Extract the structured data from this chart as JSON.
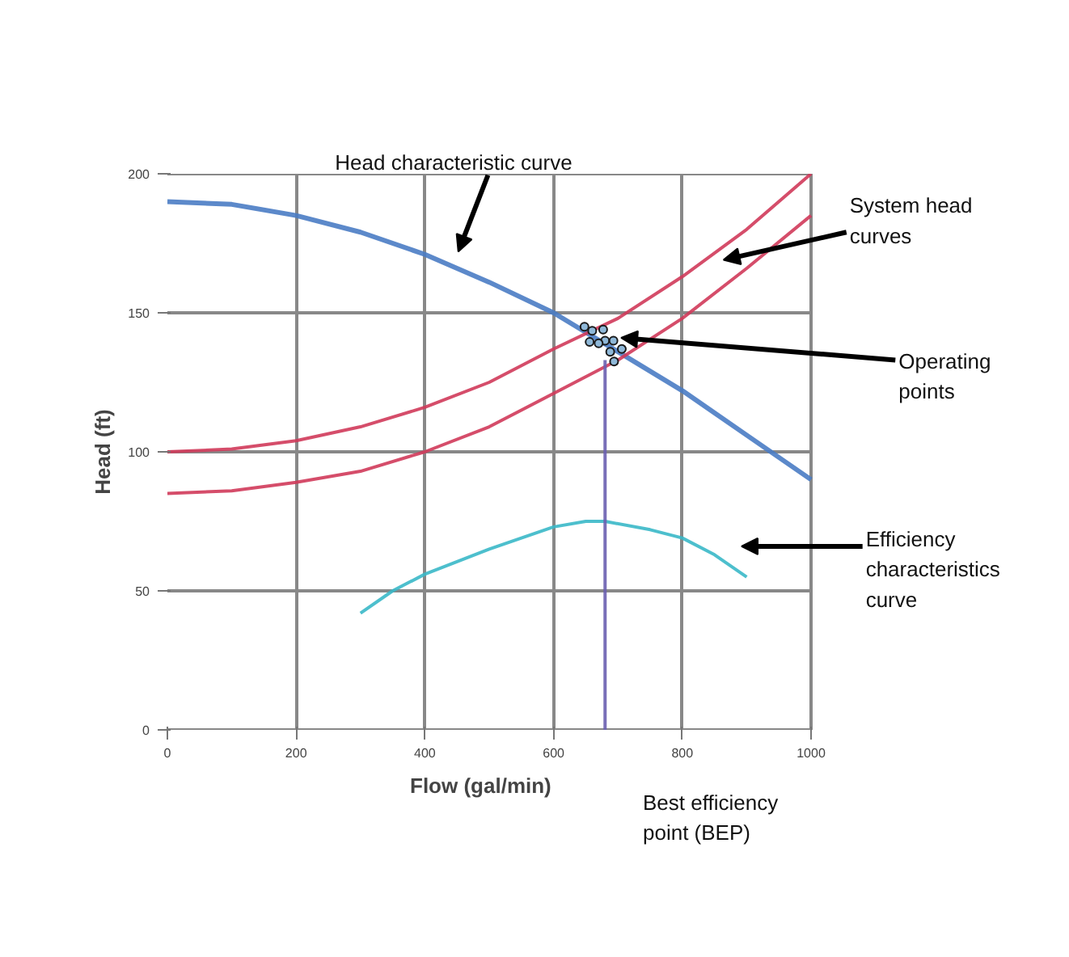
{
  "chart_data": {
    "type": "line",
    "xlabel": "Flow (gal/min)",
    "ylabel": "Head (ft)",
    "xlim": [
      0,
      1000
    ],
    "ylim": [
      0,
      200
    ],
    "xticks": [
      0,
      200,
      400,
      600,
      800,
      1000
    ],
    "yticks": [
      0,
      50,
      100,
      150,
      200
    ],
    "grid": true,
    "series": [
      {
        "color": "#4a7cc4",
        "x": [
          0,
          100,
          200,
          300,
          400,
          500,
          600,
          700,
          800,
          900,
          1000
        ],
        "values": [
          190,
          189,
          185,
          179,
          171,
          161,
          150,
          136,
          122,
          106,
          90
        ]
      },
      {
        "color": "#d03a5a",
        "x": [
          0,
          100,
          200,
          300,
          400,
          500,
          600,
          700,
          800,
          900,
          1000
        ],
        "values": [
          100,
          101,
          104,
          109,
          116,
          125,
          137,
          148,
          163,
          180,
          200
        ]
      },
      {
        "color": "#d03a5a",
        "x": [
          0,
          100,
          200,
          300,
          400,
          500,
          600,
          700,
          800,
          900,
          1000
        ],
        "values": [
          85,
          86,
          89,
          93,
          100,
          109,
          121,
          133,
          148,
          166,
          185
        ]
      },
      {
        "color": "#3ab8c8",
        "x": [
          300,
          350,
          400,
          500,
          600,
          650,
          680,
          750,
          800,
          850,
          900
        ],
        "values": [
          42,
          50,
          56,
          65,
          73,
          75,
          75,
          72,
          69,
          63,
          55
        ]
      },
      {
        "color": "#6a5fb0",
        "x": [
          680,
          680
        ],
        "values": [
          0,
          133
        ]
      },
      {
        "type": "scatter",
        "marker": "circle",
        "color": "#1a1a1a",
        "x": [
          648,
          660,
          677,
          656,
          680,
          693,
          706,
          688,
          694,
          670
        ],
        "values": [
          145,
          143.5,
          144,
          139.5,
          140,
          140,
          137,
          136,
          132.5,
          139
        ]
      }
    ],
    "annotations": [
      "Head characteristic curve",
      "System head\ncurves",
      "Operating\npoints",
      "Efficiency\ncharacteristics\ncurve",
      "Best efficiency\npoint (BEP)"
    ]
  }
}
